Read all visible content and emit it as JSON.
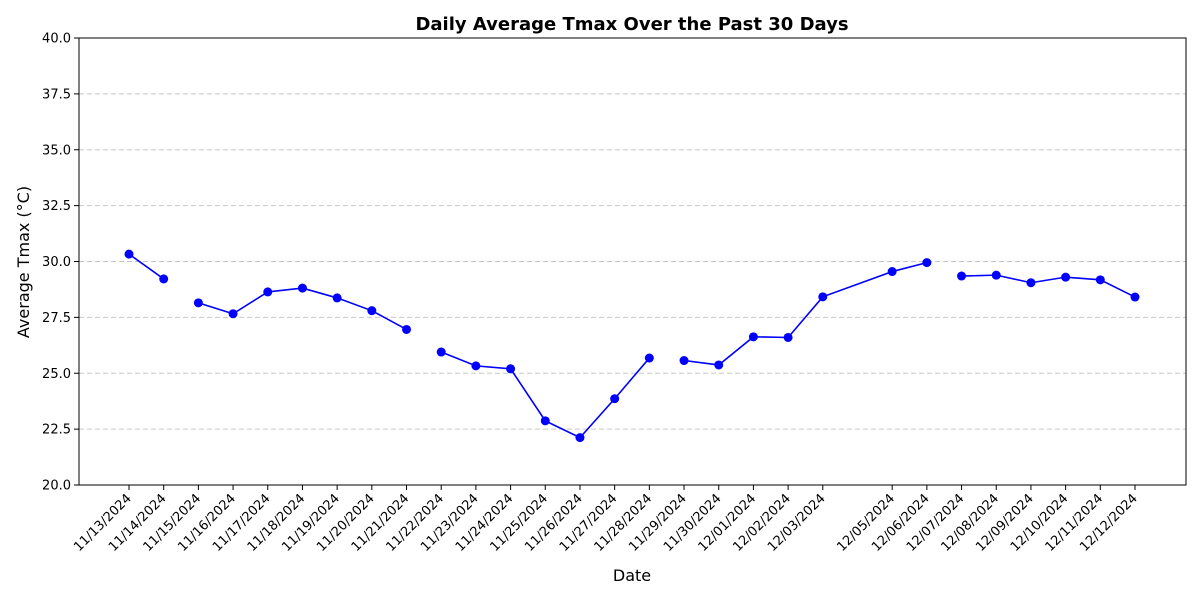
{
  "chart_data": {
    "type": "line",
    "title": "Daily Average Tmax Over the Past 30 Days",
    "xlabel": "Date",
    "ylabel": "Average Tmax (°C)",
    "ylim": [
      20.0,
      40.0
    ],
    "yticks": [
      "20.0",
      "22.5",
      "25.0",
      "27.5",
      "30.0",
      "32.5",
      "35.0",
      "37.5",
      "40.0"
    ],
    "grid": "horizontal dashed",
    "line_color": "#0000ff",
    "marker_color": "#0000ff",
    "series": [
      {
        "values": [
          {
            "x": "2024-11-13",
            "y": 30.33
          },
          {
            "x": "2024-11-14",
            "y": 29.22
          },
          {
            "x": "2024-11-15",
            "y": 28.15
          },
          {
            "x": "2024-11-16",
            "y": 27.66
          },
          {
            "x": "2024-11-17",
            "y": 28.64
          },
          {
            "x": "2024-11-18",
            "y": 28.81
          },
          {
            "x": "2024-11-19",
            "y": 28.37
          },
          {
            "x": "2024-11-20",
            "y": 27.8
          },
          {
            "x": "2024-11-21",
            "y": 26.96
          },
          {
            "x": "2024-11-22",
            "y": 25.95
          },
          {
            "x": "2024-11-23",
            "y": 25.33
          },
          {
            "x": "2024-11-24",
            "y": 25.2
          },
          {
            "x": "2024-11-25",
            "y": 22.87
          },
          {
            "x": "2024-11-26",
            "y": 22.12
          },
          {
            "x": "2024-11-27",
            "y": 23.86
          },
          {
            "x": "2024-11-28",
            "y": 25.68
          },
          {
            "x": "2024-11-29",
            "y": 25.57
          },
          {
            "x": "2024-11-30",
            "y": 25.37
          },
          {
            "x": "2024-12-01",
            "y": 26.63
          },
          {
            "x": "2024-12-02",
            "y": 26.6
          },
          {
            "x": "2024-12-03",
            "y": 28.42
          },
          {
            "x": "2024-12-05",
            "y": 29.55
          },
          {
            "x": "2024-12-06",
            "y": 29.95
          },
          {
            "x": "2024-12-07",
            "y": 29.35
          },
          {
            "x": "2024-12-08",
            "y": 29.39
          },
          {
            "x": "2024-12-09",
            "y": 29.05
          },
          {
            "x": "2024-12-10",
            "y": 29.3
          },
          {
            "x": "2024-12-11",
            "y": 29.18
          },
          {
            "x": "2024-12-12",
            "y": 28.41
          }
        ]
      }
    ],
    "xtick_labels": [
      "11/13/2024",
      "11/14/2024",
      "11/15/2024",
      "11/16/2024",
      "11/17/2024",
      "11/18/2024",
      "11/19/2024",
      "11/20/2024",
      "11/21/2024",
      "11/22/2024",
      "11/23/2024",
      "11/24/2024",
      "11/25/2024",
      "11/26/2024",
      "11/27/2024",
      "11/28/2024",
      "11/29/2024",
      "11/30/2024",
      "12/01/2024",
      "12/02/2024",
      "12/03/2024",
      "12/05/2024",
      "12/06/2024",
      "12/07/2024",
      "12/08/2024",
      "12/09/2024",
      "12/10/2024",
      "12/11/2024",
      "12/12/2024"
    ],
    "segments": [
      [
        "2024-11-13",
        "2024-11-14"
      ],
      [
        "2024-11-15",
        "2024-11-21"
      ],
      [
        "2024-11-22",
        "2024-11-28"
      ],
      [
        "2024-11-29",
        "2024-12-06"
      ],
      [
        "2024-12-07",
        "2024-12-12"
      ]
    ]
  }
}
